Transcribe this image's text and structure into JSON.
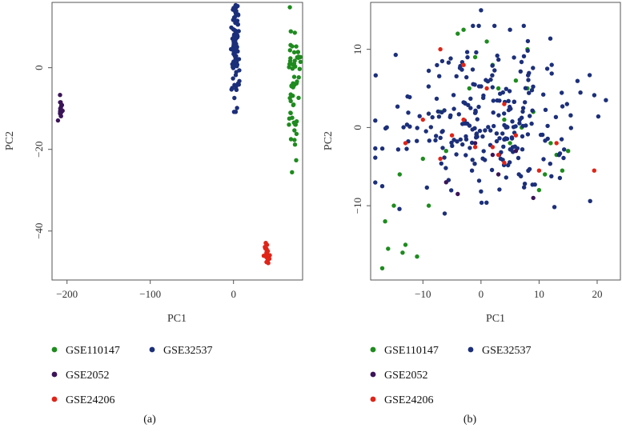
{
  "figure": {
    "panel_labels": [
      "(a)",
      "(b)"
    ]
  },
  "chart_data": [
    {
      "type": "scatter",
      "panel": "(a)",
      "xlabel": "PC1",
      "ylabel": "PC2",
      "xlim": [
        -218,
        83
      ],
      "ylim": [
        -52,
        16
      ],
      "xticks": [
        -200,
        -100,
        0
      ],
      "yticks": [
        0,
        -20,
        -40
      ],
      "grid": false,
      "legend_placement": "below",
      "series": [
        {
          "name": "GSE110147",
          "color": "#1e8b1e",
          "cluster": {
            "center": [
              72,
              -4
            ],
            "spread": [
              4,
              9
            ],
            "n": 60
          }
        },
        {
          "name": "GSE32537",
          "color": "#1c2f7a",
          "cluster": {
            "center": [
              2,
              6
            ],
            "spread": [
              2.2,
              7
            ],
            "n": 120
          }
        },
        {
          "name": "GSE2052",
          "color": "#3b1458",
          "cluster": {
            "center": [
              -208,
              -9
            ],
            "spread": [
              1.2,
              2.2
            ],
            "n": 18
          }
        },
        {
          "name": "GSE24206",
          "color": "#e02418",
          "cluster": {
            "center": [
              40,
              -46
            ],
            "spread": [
              1.5,
              1.8
            ],
            "n": 20
          }
        }
      ]
    },
    {
      "type": "scatter",
      "panel": "(b)",
      "xlabel": "PC1",
      "ylabel": "PC2",
      "xlim": [
        -19,
        24
      ],
      "ylim": [
        -19.5,
        16
      ],
      "xticks": [
        -10,
        0,
        10,
        20
      ],
      "yticks": [
        10,
        0,
        -10
      ],
      "grid": false,
      "legend_placement": "below",
      "series": [
        {
          "name": "GSE110147",
          "color": "#1e8b1e",
          "points": [
            [
              -17,
              -18
            ],
            [
              -16.5,
              -12
            ],
            [
              -16,
              -15.5
            ],
            [
              -15,
              -10
            ],
            [
              -13,
              -15
            ],
            [
              -13.5,
              -16
            ],
            [
              -11,
              -16.5
            ],
            [
              -14,
              -6
            ],
            [
              -9,
              -10
            ],
            [
              -4,
              12
            ],
            [
              -3,
              12.5
            ],
            [
              1,
              11
            ],
            [
              -1,
              9
            ],
            [
              2,
              8
            ],
            [
              -2,
              5
            ],
            [
              3,
              5
            ],
            [
              6,
              6
            ],
            [
              8,
              10
            ],
            [
              9,
              2
            ],
            [
              7,
              0
            ],
            [
              12,
              -2
            ],
            [
              13,
              -3.5
            ],
            [
              14,
              -5.5
            ],
            [
              15,
              -3
            ],
            [
              11,
              -6
            ],
            [
              10,
              -8
            ],
            [
              -6,
              -3
            ],
            [
              -10,
              -4
            ],
            [
              -7,
              2
            ],
            [
              4,
              1
            ],
            [
              5,
              -2
            ],
            [
              8,
              5
            ]
          ]
        },
        {
          "name": "GSE32537",
          "color": "#1c2f7a",
          "cluster": {
            "center": [
              1,
              1
            ],
            "spread": [
              8,
              5
            ],
            "n": 260
          },
          "points": [
            [
              0,
              15
            ],
            [
              5,
              12.5
            ],
            [
              21.5,
              3.5
            ],
            [
              -17,
              -7.5
            ]
          ]
        },
        {
          "name": "GSE2052",
          "color": "#3b1458",
          "points": [
            [
              -4,
              -8.5
            ],
            [
              3,
              -6
            ],
            [
              6,
              -3
            ],
            [
              9,
              -9
            ],
            [
              -6,
              -7
            ],
            [
              2,
              -3.5
            ],
            [
              -1,
              -2
            ]
          ]
        },
        {
          "name": "GSE24206",
          "color": "#e02418",
          "points": [
            [
              -7,
              10
            ],
            [
              -3,
              8
            ],
            [
              -5,
              -1
            ],
            [
              1,
              5
            ],
            [
              3,
              -3.5
            ],
            [
              4,
              -4.5
            ],
            [
              2,
              -2.5
            ],
            [
              -10,
              1
            ],
            [
              -13,
              -2
            ],
            [
              6,
              -1
            ],
            [
              10,
              -5.5
            ],
            [
              13,
              -2
            ],
            [
              19.5,
              -5.5
            ],
            [
              -1,
              -2.5
            ],
            [
              -3,
              1
            ],
            [
              -7,
              -4
            ],
            [
              4,
              3
            ]
          ]
        }
      ]
    }
  ]
}
